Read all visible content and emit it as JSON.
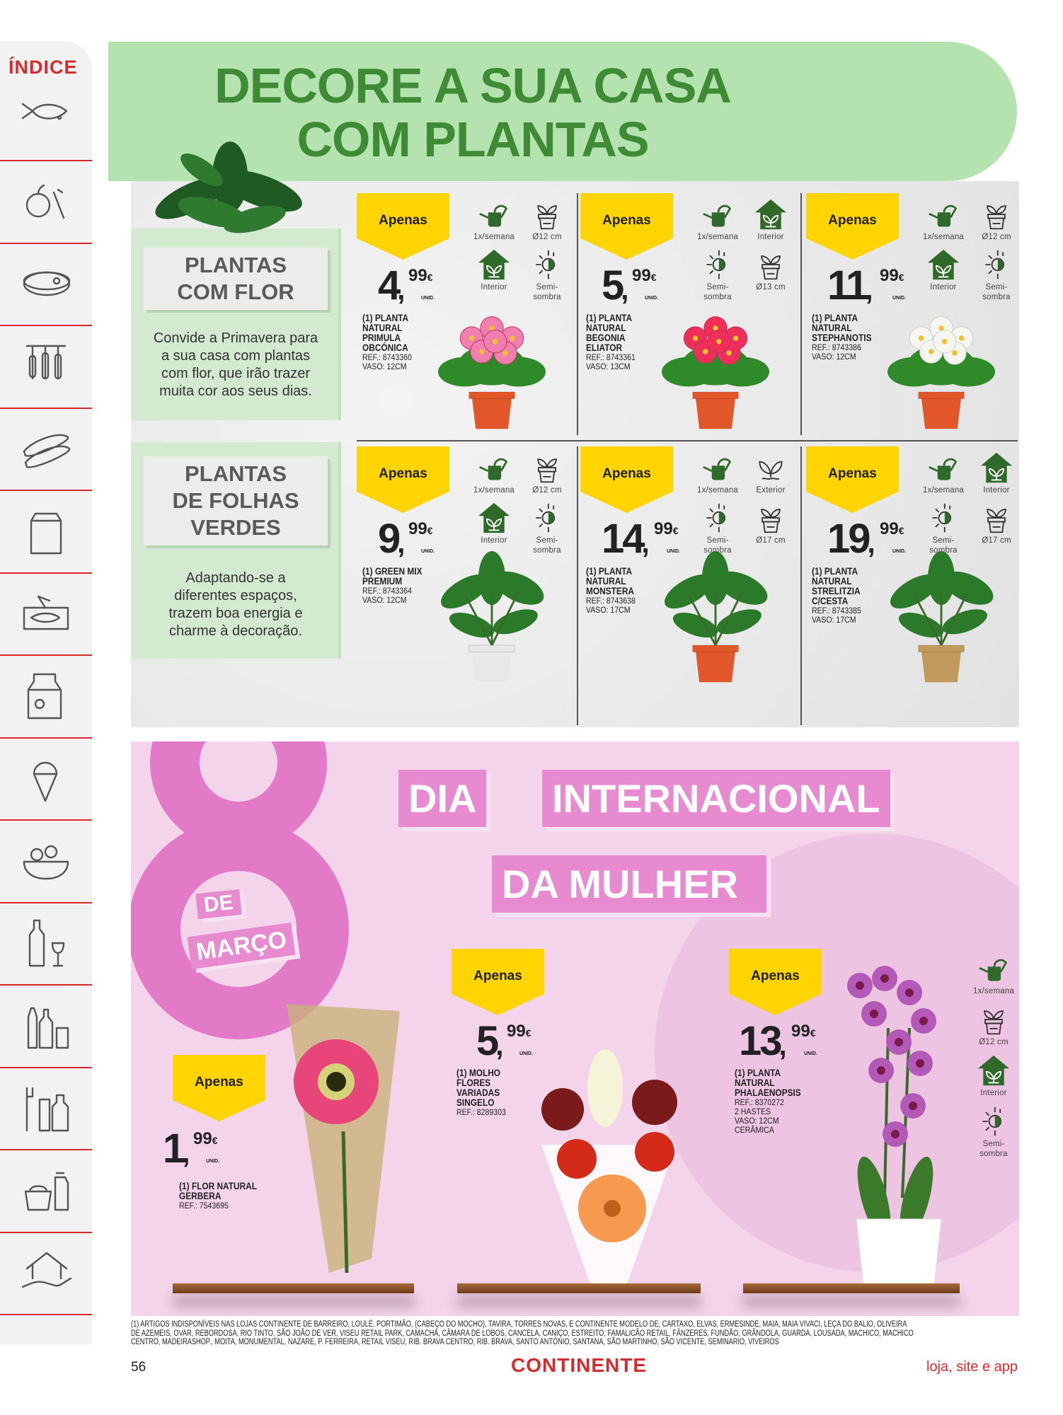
{
  "sidebar": {
    "title": "ÍNDICE",
    "items": [
      {
        "icon": "fish-icon"
      },
      {
        "icon": "fruit-vegetables-icon"
      },
      {
        "icon": "meat-icon"
      },
      {
        "icon": "sausages-icon"
      },
      {
        "icon": "bread-icon"
      },
      {
        "icon": "coffee-bag-icon"
      },
      {
        "icon": "canned-fish-icon"
      },
      {
        "icon": "milk-carton-icon"
      },
      {
        "icon": "ice-cream-icon"
      },
      {
        "icon": "salad-icon"
      },
      {
        "icon": "wine-icon"
      },
      {
        "icon": "drinks-icon"
      },
      {
        "icon": "toiletries-icon"
      },
      {
        "icon": "cleaning-icon"
      },
      {
        "icon": "home-care-icon"
      }
    ]
  },
  "header": {
    "line1": "DECORE A SUA CASA",
    "line2": "COM PLANTAS"
  },
  "panels": [
    {
      "title": [
        "PLANTAS",
        "COM FLOR"
      ],
      "desc": [
        "Convide a Primavera para",
        "a sua casa com plantas",
        "com flor, que irão trazer",
        "muita cor aos seus dias."
      ]
    },
    {
      "title": [
        "PLANTAS",
        "DE FOLHAS",
        "VERDES"
      ],
      "desc": [
        "Adaptando-se a",
        "diferentes espaços,",
        "trazem boa energia e",
        "charme à decoração."
      ]
    }
  ],
  "labels": {
    "apenas": "Apenas",
    "unid": "UNID.",
    "currency": "€"
  },
  "products": [
    {
      "int": "4",
      "dec": "99",
      "name": [
        "(1) PLANTA",
        "NATURAL",
        "PRIMULA",
        "OBCÓNICA"
      ],
      "ref": [
        "REF.: 8743360",
        "VASO: 12CM"
      ],
      "plant": "flower",
      "color": "#f07fb0",
      "icons": [
        {
          "icon": "water",
          "label": "1x/semana"
        },
        {
          "icon": "pot",
          "label": "Ø12 cm"
        },
        {
          "icon": "house",
          "label": "Interior"
        },
        {
          "icon": "sun",
          "label": "Semi-sombra"
        }
      ]
    },
    {
      "int": "5",
      "dec": "99",
      "name": [
        "(1) PLANTA",
        "NATURAL",
        "BEGONIA",
        "ELIATOR"
      ],
      "ref": [
        "REF.: 8743361",
        "VASO: 13CM"
      ],
      "plant": "flower",
      "color": "#ef2f5a",
      "icons": [
        {
          "icon": "water",
          "label": "1x/semana"
        },
        {
          "icon": "house",
          "label": "Interior"
        },
        {
          "icon": "sun",
          "label": "Semi-sombra"
        },
        {
          "icon": "pot",
          "label": "Ø13 cm"
        }
      ]
    },
    {
      "int": "11",
      "dec": "99",
      "name": [
        "(1) PLANTA",
        "NATURAL",
        "STEPHANOTIS"
      ],
      "ref": [
        "REF.: 8743386",
        "VASO: 12CM"
      ],
      "plant": "flower",
      "color": "#ffffff",
      "icons": [
        {
          "icon": "water",
          "label": "1x/semana"
        },
        {
          "icon": "pot",
          "label": "Ø12 cm"
        },
        {
          "icon": "house",
          "label": "Interior"
        },
        {
          "icon": "sun",
          "label": "Semi-sombra"
        }
      ]
    },
    {
      "int": "9",
      "dec": "99",
      "name": [
        "(1) GREEN MIX",
        "PREMIUM"
      ],
      "ref": [
        "REF.: 8743364",
        "VASO: 12CM"
      ],
      "plant": "leaf",
      "color": "#e8e8e8",
      "icons": [
        {
          "icon": "water",
          "label": "1x/semana"
        },
        {
          "icon": "pot",
          "label": "Ø12 cm"
        },
        {
          "icon": "house",
          "label": "Interior"
        },
        {
          "icon": "sun",
          "label": "Semi-sombra"
        }
      ]
    },
    {
      "int": "14",
      "dec": "99",
      "name": [
        "(1) PLANTA",
        "NATURAL",
        "MONSTERA"
      ],
      "ref": [
        "REF.: 8743638",
        "VASO: 17CM"
      ],
      "plant": "leaf",
      "color": "#e2572a",
      "icons": [
        {
          "icon": "water",
          "label": "1x/semana"
        },
        {
          "icon": "ext",
          "label": "Exterior"
        },
        {
          "icon": "sun",
          "label": "Semi-sombra"
        },
        {
          "icon": "pot",
          "label": "Ø17 cm"
        }
      ]
    },
    {
      "int": "19",
      "dec": "99",
      "name": [
        "(1) PLANTA",
        "NATURAL",
        "STRELITZIA",
        "C/CESTA"
      ],
      "ref": [
        "REF.: 8743385",
        "VASO: 17CM"
      ],
      "plant": "leaf",
      "color": "#c09a5a",
      "icons": [
        {
          "icon": "water",
          "label": "1x/semana"
        },
        {
          "icon": "house",
          "label": "Interior"
        },
        {
          "icon": "sun",
          "label": "Semi-sombra"
        },
        {
          "icon": "pot",
          "label": "Ø17 cm"
        }
      ]
    }
  ],
  "women": {
    "eight": "8",
    "de": "DE",
    "marco": "MARÇO",
    "dia": "DIA",
    "internacional": "INTERNACIONAL",
    "da_mulher": "DA MULHER",
    "products": [
      {
        "int": "1",
        "dec": "99",
        "name": [
          "(1) FLOR NATURAL",
          "GERBERA"
        ],
        "ref": [
          "REF.: 7543695"
        ]
      },
      {
        "int": "5",
        "dec": "99",
        "name": [
          "(1) MOLHO",
          "FLORES",
          "VARIADAS",
          "SINGELO"
        ],
        "ref": [
          "REF.: 8289303"
        ]
      },
      {
        "int": "13",
        "dec": "99",
        "name": [
          "(1) PLANTA",
          "NATURAL",
          "PHALAENOPSIS"
        ],
        "ref": [
          "REF.: 8370272",
          "2 HASTES",
          "VASO: 12CM",
          "CERÂMICA"
        ]
      }
    ],
    "orchid_icons": [
      {
        "icon": "water",
        "label": "1x/semana"
      },
      {
        "icon": "pot",
        "label": "Ø12 cm"
      },
      {
        "icon": "house",
        "label": "Interior"
      },
      {
        "icon": "sun",
        "label": "Semi-sombra"
      }
    ]
  },
  "footer": {
    "note": [
      "(1) ARTIGOS INDISPONÍVEIS NAS LOJAS CONTINENTE DE BARREIRO, LOULÉ, PORTIMÃO, (CABEÇO DO  MOCHO), TAVIRA, TORRES NOVAS, E CONTINENTE MODELO DE, CARTAXO, ELVAS, ERMESINDE, MAIA, MAIA VIVACI, LEÇA DO BALIO, OLIVEIRA",
      "DE AZEMEIS, OVAR, REBORDOSA, RIO TINTO, SÃO JOÃO DE VER, VISEU RETAIL PARK, CAMACHÁ, CÂMARA DE LOBOS, CANCELA, CANIÇO, ESTREITO, FAMALICÃO RETAIL, FÂNZERES, FUNDÃO, GRÂNDOLA, GUARDA, LOUSADA, MACHICO, MACHICO",
      "CENTRO, MADEIRASHOP., MOITA, MONUMENTAL, NAZARE, P. FERREIRA, RETAIL VISEU, RIB. BRAVA CENTRO, RIB. BRAVA, SANTO ANTÓNIO, SANTANA, SÃO MARTINHO, SÃO VICENTE, SEMINARIO, VIVEIROS"
    ],
    "page": "56",
    "brand": "CONTINENTE",
    "tagline": "loja, site e app"
  },
  "colors": {
    "brand_red": "#d52b2f",
    "header_green": "#b5e3b0",
    "title_green": "#3f8a35",
    "badge_yellow": "#ffd400",
    "pink": "#e27ac8"
  }
}
